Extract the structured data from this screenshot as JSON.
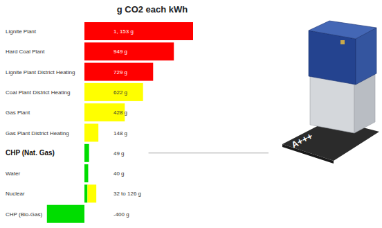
{
  "chart_data": {
    "type": "bar",
    "orientation": "horizontal",
    "title": "g CO2 each kWh",
    "categories": [
      "Lignite Plant",
      "Hard Coal Plant",
      "Lignite Plant District Heating",
      "Coal Plant District Heating",
      "Gas Plant",
      "Gas Plant District Heating",
      "CHP (Nat. Gas)",
      "Water",
      "Nuclear",
      "CHP (Bio-Gas)"
    ],
    "values": [
      1153,
      949,
      729,
      622,
      428,
      148,
      49,
      40,
      32,
      -400
    ],
    "high_values": [
      null,
      null,
      null,
      null,
      null,
      null,
      null,
      null,
      126,
      null
    ],
    "value_labels": [
      "1, 153 g",
      "949 g",
      "729 g",
      "622 g",
      "428 g",
      "148 g",
      "49 g",
      "40 g",
      "32 to 126 g",
      "-400 g"
    ],
    "colors": [
      "#ff0000",
      "#ff0000",
      "#ff0000",
      "#ffff00",
      "#ffff00",
      "#ffff00",
      "#00dd00",
      "#00dd00",
      "#00dd00",
      "#00dd00"
    ],
    "xlim": [
      -400,
      1153
    ],
    "tick_labels": false,
    "data_labels": true,
    "annotation": "A+++"
  }
}
